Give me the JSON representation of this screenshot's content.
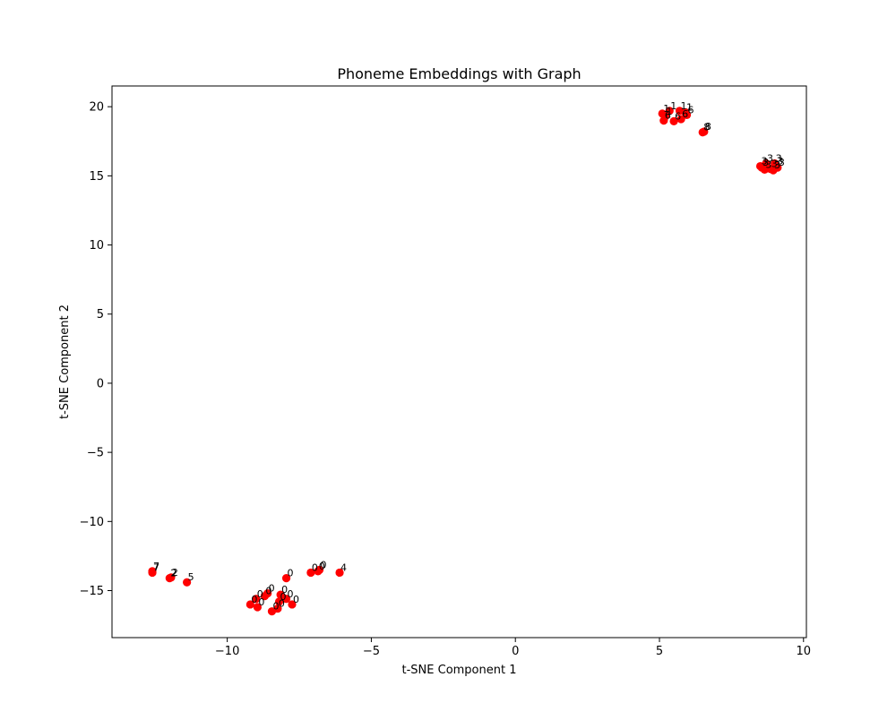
{
  "chart_data": {
    "type": "scatter",
    "title": "Phoneme Embeddings with Graph",
    "xlabel": "t-SNE Component 1",
    "ylabel": "t-SNE Component 2",
    "xlim": [
      -14.0,
      10.1
    ],
    "ylim": [
      -18.4,
      21.5
    ],
    "xticks": [
      -10,
      -5,
      0,
      5,
      10
    ],
    "yticks": [
      -15,
      -10,
      -5,
      0,
      5,
      10,
      15,
      20
    ],
    "grid": false,
    "marker_color": "#ff0000",
    "points": [
      {
        "x": -12.6,
        "y": -13.7,
        "label": "7"
      },
      {
        "x": -12.6,
        "y": -13.6,
        "label": "7"
      },
      {
        "x": -12.0,
        "y": -14.1,
        "label": "2"
      },
      {
        "x": -11.95,
        "y": -14.05,
        "label": "2"
      },
      {
        "x": -11.4,
        "y": -14.4,
        "label": "5"
      },
      {
        "x": -9.2,
        "y": -16.0,
        "label": "0"
      },
      {
        "x": -9.0,
        "y": -15.6,
        "label": "0"
      },
      {
        "x": -8.95,
        "y": -16.2,
        "label": "0"
      },
      {
        "x": -8.7,
        "y": -15.4,
        "label": "0"
      },
      {
        "x": -8.6,
        "y": -15.2,
        "label": "0"
      },
      {
        "x": -8.45,
        "y": -16.5,
        "label": "0"
      },
      {
        "x": -8.25,
        "y": -16.3,
        "label": "0"
      },
      {
        "x": -8.2,
        "y": -15.8,
        "label": "0"
      },
      {
        "x": -8.15,
        "y": -15.3,
        "label": "0"
      },
      {
        "x": -7.95,
        "y": -15.6,
        "label": "0"
      },
      {
        "x": -7.95,
        "y": -14.1,
        "label": "0"
      },
      {
        "x": -7.75,
        "y": -16.0,
        "label": "0"
      },
      {
        "x": -7.1,
        "y": -13.7,
        "label": "0"
      },
      {
        "x": -6.85,
        "y": -13.6,
        "label": "0"
      },
      {
        "x": -6.8,
        "y": -13.5,
        "label": "0"
      },
      {
        "x": -6.1,
        "y": -13.7,
        "label": "4"
      },
      {
        "x": 5.1,
        "y": 19.5,
        "label": "1"
      },
      {
        "x": 5.15,
        "y": 19.0,
        "label": "6"
      },
      {
        "x": 5.2,
        "y": 19.3,
        "label": "1"
      },
      {
        "x": 5.35,
        "y": 19.7,
        "label": "1"
      },
      {
        "x": 5.5,
        "y": 18.95,
        "label": "6"
      },
      {
        "x": 5.7,
        "y": 19.7,
        "label": "1"
      },
      {
        "x": 5.75,
        "y": 19.1,
        "label": "6"
      },
      {
        "x": 5.9,
        "y": 19.6,
        "label": "1"
      },
      {
        "x": 5.95,
        "y": 19.4,
        "label": "6"
      },
      {
        "x": 6.5,
        "y": 18.15,
        "label": "8"
      },
      {
        "x": 6.55,
        "y": 18.2,
        "label": "8"
      },
      {
        "x": 8.5,
        "y": 15.7,
        "label": "3"
      },
      {
        "x": 8.55,
        "y": 15.6,
        "label": "3"
      },
      {
        "x": 8.65,
        "y": 15.45,
        "label": "3"
      },
      {
        "x": 8.7,
        "y": 15.9,
        "label": "3"
      },
      {
        "x": 8.85,
        "y": 15.5,
        "label": "3"
      },
      {
        "x": 8.95,
        "y": 15.4,
        "label": "3"
      },
      {
        "x": 9.0,
        "y": 15.9,
        "label": "3"
      },
      {
        "x": 9.05,
        "y": 15.7,
        "label": "3"
      },
      {
        "x": 9.1,
        "y": 15.6,
        "label": "3"
      }
    ]
  }
}
